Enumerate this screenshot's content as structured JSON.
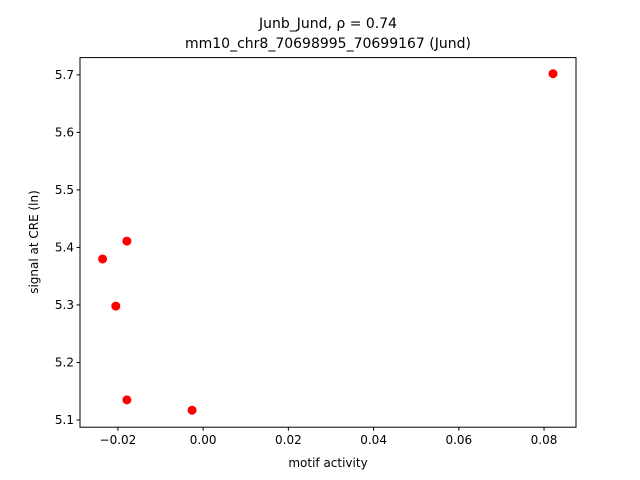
{
  "chart_data": {
    "type": "scatter",
    "title": "Junb_Jund, ρ = 0.74",
    "subtitle": "mm10_chr8_70698995_70699167 (Jund)",
    "x_label": "motif activity",
    "y_label": "signal at CRE (ln)",
    "color": "#ff0000",
    "x": [
      0.0821,
      -0.0179,
      -0.0236,
      -0.0205,
      -0.0179,
      -0.0026
    ],
    "values": [
      5.702,
      5.411,
      5.38,
      5.298,
      5.135,
      5.117
    ],
    "xlim": [
      -0.0289,
      0.0875
    ],
    "ylim": [
      5.0875,
      5.73
    ],
    "xticks": [
      {
        "value": -0.02,
        "label": "−0.02"
      },
      {
        "value": 0,
        "label": "0.00"
      },
      0.02,
      0.04,
      0.06,
      0.08
    ],
    "yticks": [
      5.1,
      5.2,
      5.3,
      5.4,
      5.5,
      5.6,
      5.7
    ]
  }
}
